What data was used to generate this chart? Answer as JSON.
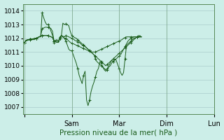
{
  "title": "Pression niveau de la mer( hPa )",
  "background_color": "#cceee8",
  "grid_color": "#aacccc",
  "line_color": "#1a5c1a",
  "ylim": [
    1006.5,
    1014.5
  ],
  "yticks": [
    1007,
    1008,
    1009,
    1010,
    1011,
    1012,
    1013,
    1014
  ],
  "day_positions": [
    0,
    32,
    64,
    96,
    128
  ],
  "day_labels": [
    "",
    "Sam",
    "Mar",
    "Dim",
    "Lun"
  ],
  "total_points": 130,
  "series": [
    [
      1011.7,
      1011.85,
      1011.9,
      1011.9,
      1011.9,
      1011.9,
      1011.9,
      1011.9,
      1012.0,
      1012.05,
      1012.1,
      1012.1,
      1013.85,
      1013.5,
      1013.2,
      1013.0,
      1013.0,
      1012.8,
      1012.5,
      1012.2,
      1011.7,
      1011.8,
      1011.8,
      1011.8,
      1012.1,
      1012.2,
      1012.1,
      1012.0,
      1011.8,
      1011.5,
      1011.2,
      1011.1,
      1011.1,
      1010.8,
      1010.5,
      1010.2,
      1009.8,
      1009.3,
      1009.0,
      1008.7,
      1009.3,
      1009.6,
      1007.5,
      1007.1,
      1007.5,
      1008.1,
      1008.5,
      1008.8,
      1009.2,
      1009.6,
      1009.8,
      1010.3,
      1010.2,
      1009.9,
      1009.7,
      1009.6,
      1009.7,
      1010.0,
      1010.2,
      1010.4,
      1010.3,
      1010.5,
      1010.4,
      1010.1,
      1009.8,
      1009.5,
      1009.3,
      1009.5,
      1010.5,
      1011.5,
      1011.6,
      1011.7,
      1011.8,
      1011.9,
      1012.0,
      1012.0,
      1012.1,
      1012.1,
      1012.2,
      1012.1
    ],
    [
      1011.7,
      1011.8,
      1011.85,
      1011.9,
      1011.95,
      1011.95,
      1011.95,
      1012.0,
      1012.0,
      1012.05,
      1012.1,
      1012.15,
      1012.7,
      1012.75,
      1012.8,
      1012.8,
      1012.8,
      1012.75,
      1012.7,
      1012.5,
      1011.8,
      1011.85,
      1011.9,
      1011.7,
      1012.0,
      1012.2,
      1012.1,
      1012.0,
      1012.0,
      1011.9,
      1011.8,
      1011.7,
      1011.65,
      1011.6,
      1011.55,
      1011.5,
      1011.45,
      1011.4,
      1011.35,
      1011.3,
      1011.25,
      1011.2,
      1011.15,
      1011.1,
      1011.05,
      1011.0,
      1011.0,
      1011.0,
      1011.0,
      1011.05,
      1011.1,
      1011.15,
      1011.2,
      1011.25,
      1011.3,
      1011.35,
      1011.4,
      1011.45,
      1011.5,
      1011.55,
      1011.6,
      1011.65,
      1011.7,
      1011.75,
      1011.8,
      1011.85,
      1011.9,
      1012.0,
      1012.05,
      1012.1,
      1012.1,
      1012.1,
      1012.1,
      1012.1,
      1012.1,
      1012.1,
      1012.1,
      1012.1,
      1012.1,
      1012.1
    ],
    [
      1011.7,
      1011.8,
      1011.85,
      1011.9,
      1011.95,
      1011.95,
      1011.95,
      1012.0,
      1012.0,
      1012.05,
      1012.1,
      1012.15,
      1012.2,
      1012.2,
      1012.2,
      1012.2,
      1012.2,
      1012.15,
      1012.1,
      1012.05,
      1011.8,
      1011.75,
      1011.7,
      1011.7,
      1012.0,
      1012.2,
      1012.15,
      1012.1,
      1012.2,
      1012.15,
      1012.1,
      1012.05,
      1012.0,
      1011.95,
      1011.85,
      1011.8,
      1011.75,
      1011.7,
      1011.6,
      1011.5,
      1011.45,
      1011.4,
      1011.3,
      1011.2,
      1011.1,
      1011.0,
      1010.9,
      1010.8,
      1010.7,
      1010.6,
      1010.5,
      1010.4,
      1010.3,
      1010.2,
      1010.1,
      1010.0,
      1010.1,
      1010.2,
      1010.3,
      1010.4,
      1010.5,
      1010.6,
      1010.7,
      1010.8,
      1010.9,
      1011.0,
      1011.1,
      1011.2,
      1011.3,
      1011.4,
      1011.5,
      1011.6,
      1011.7,
      1011.8,
      1011.9,
      1012.0,
      1012.1,
      1012.1,
      1012.1,
      1012.1
    ],
    [
      1011.7,
      1011.8,
      1011.85,
      1011.9,
      1011.95,
      1011.95,
      1011.95,
      1012.0,
      1012.0,
      1012.05,
      1012.1,
      1012.15,
      1012.2,
      1012.2,
      1012.2,
      1012.2,
      1012.2,
      1012.15,
      1012.1,
      1012.05,
      1011.8,
      1011.75,
      1011.7,
      1011.7,
      1012.0,
      1012.2,
      1013.1,
      1013.0,
      1013.05,
      1013.0,
      1012.9,
      1012.5,
      1012.2,
      1012.1,
      1012.05,
      1012.0,
      1011.9,
      1011.8,
      1011.7,
      1011.6,
      1011.5,
      1011.4,
      1011.3,
      1011.2,
      1011.1,
      1011.0,
      1010.9,
      1010.8,
      1010.5,
      1010.3,
      1010.2,
      1010.1,
      1010.0,
      1009.9,
      1009.8,
      1009.7,
      1009.8,
      1009.9,
      1010.0,
      1010.2,
      1010.3,
      1010.4,
      1010.5,
      1010.6,
      1010.7,
      1010.8,
      1011.0,
      1011.2,
      1011.4,
      1011.6,
      1011.8,
      1011.9,
      1012.0,
      1012.05,
      1012.1,
      1012.1,
      1012.1,
      1012.2,
      1012.1,
      1012.1
    ]
  ]
}
